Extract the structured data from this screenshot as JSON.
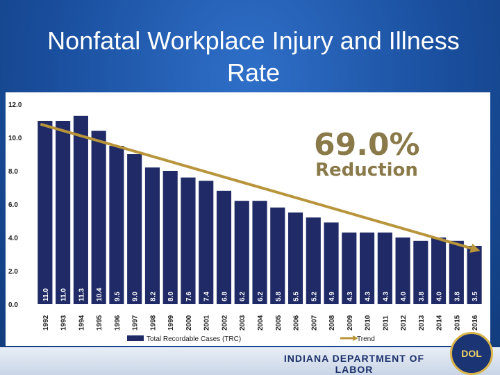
{
  "slide": {
    "title": "Nonfatal Workplace Injury and Illness Rate",
    "footer_org": "INDIANA DEPARTMENT OF LABOR",
    "seal_text": "DOL"
  },
  "colors": {
    "bar": "#1f2a66",
    "trend": "#b8943a",
    "callout": "#8a7a4a"
  },
  "chart_data": {
    "type": "bar",
    "categories": [
      "1992",
      "1993",
      "1994",
      "1995",
      "1996",
      "1997",
      "1998",
      "1999",
      "2000",
      "2001",
      "2002",
      "2003",
      "2004",
      "2005",
      "2006",
      "2007",
      "2008",
      "2009",
      "2010",
      "2011",
      "2012",
      "2013",
      "2014",
      "2015",
      "2016"
    ],
    "series": [
      {
        "name": "Total Recordable Cases (TRC)",
        "values": [
          11.0,
          11.0,
          11.3,
          10.4,
          9.5,
          9.0,
          8.2,
          8.0,
          7.6,
          7.4,
          6.8,
          6.2,
          6.2,
          5.8,
          5.5,
          5.2,
          4.9,
          4.3,
          4.3,
          4.3,
          4.0,
          3.8,
          4.0,
          3.8,
          3.5
        ]
      }
    ],
    "value_labels": [
      "11.0",
      "11.0",
      "11.3",
      "10.4",
      "9.5",
      "9.0",
      "8.2",
      "8.0",
      "7.6",
      "7.4",
      "6.8",
      "6.2",
      "6.2",
      "5.8",
      "5.5",
      "5.2",
      "4.9",
      "4.3",
      "4.3",
      "4.3",
      "4.0",
      "3.8",
      "4.0",
      "3.8",
      "3.5"
    ],
    "trend": {
      "name": "Trend",
      "start": 10.8,
      "end": 3.2
    },
    "y_ticks": [
      "0.0",
      "2.0",
      "4.0",
      "6.0",
      "8.0",
      "10.0",
      "12.0"
    ],
    "ylim": [
      0,
      12
    ],
    "callout": {
      "percent": "69.0%",
      "word": "Reduction"
    },
    "legend_position": "bottom",
    "grid": false
  }
}
